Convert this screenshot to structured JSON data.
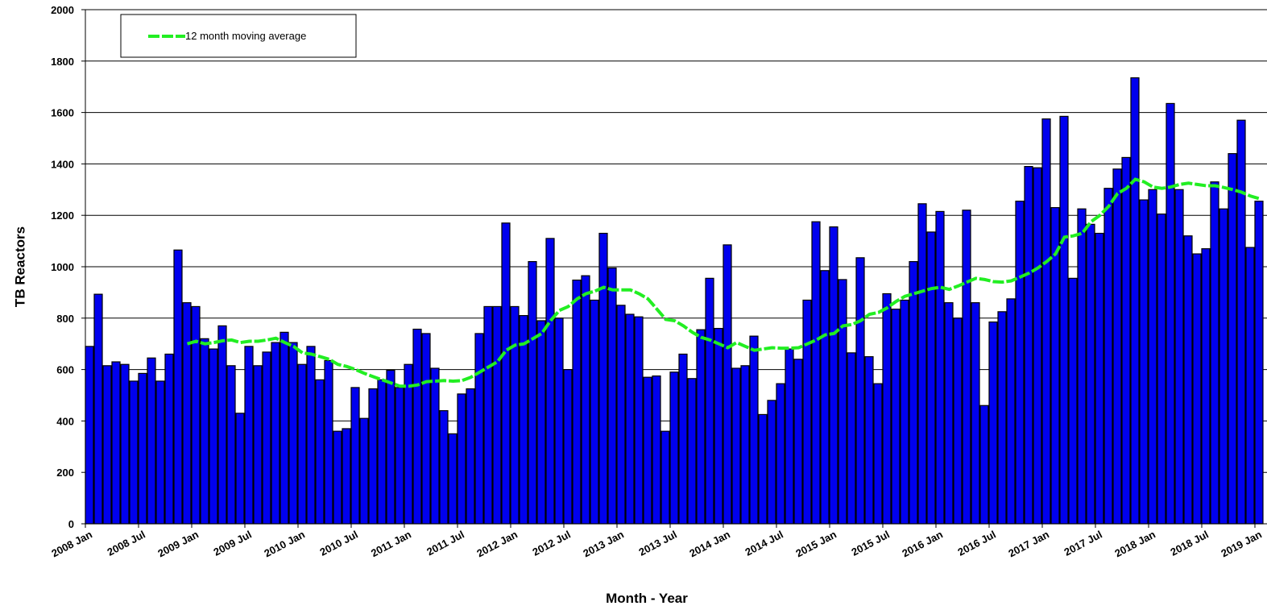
{
  "chart_data": {
    "type": "bar",
    "x_label": "Month - Year",
    "y_label": "TB Reactors",
    "categories": [
      "2008 Jan",
      null,
      null,
      null,
      null,
      null,
      "2008 Jul",
      null,
      null,
      null,
      null,
      null,
      "2009 Jan",
      null,
      null,
      null,
      null,
      null,
      "2009 Jul",
      null,
      null,
      null,
      null,
      null,
      "2010 Jan",
      null,
      null,
      null,
      null,
      null,
      "2010 Jul",
      null,
      null,
      null,
      null,
      null,
      "2011 Jan",
      null,
      null,
      null,
      null,
      null,
      "2011 Jul",
      null,
      null,
      null,
      null,
      null,
      "2012 Jan",
      null,
      null,
      null,
      null,
      null,
      "2012 Jul",
      null,
      null,
      null,
      null,
      null,
      "2013 Jan",
      null,
      null,
      null,
      null,
      null,
      "2013 Jul",
      null,
      null,
      null,
      null,
      null,
      "2014 Jan",
      null,
      null,
      null,
      null,
      null,
      "2014 Jul",
      null,
      null,
      null,
      null,
      null,
      "2015 Jan",
      null,
      null,
      null,
      null,
      null,
      "2015 Jul",
      null,
      null,
      null,
      null,
      null,
      "2016 Jan",
      null,
      null,
      null,
      null,
      null,
      "2016 Jul",
      null,
      null,
      null,
      null,
      null,
      "2017 Jan",
      null,
      null,
      null,
      null,
      null,
      "2017 Jul",
      null,
      null,
      null,
      null,
      null,
      "2018 Jan",
      null,
      null,
      null,
      null,
      null,
      "2018 Jul",
      null,
      null,
      null,
      null,
      null,
      "2019 Jan"
    ],
    "series": [
      {
        "type": "bar",
        "color": "#0000ee",
        "values": [
          690,
          893,
          615,
          630,
          620,
          555,
          585,
          645,
          555,
          660,
          1065,
          860,
          845,
          720,
          680,
          770,
          615,
          430,
          690,
          615,
          668,
          705,
          745,
          705,
          620,
          690,
          560,
          635,
          360,
          370,
          530,
          410,
          525,
          560,
          597,
          530,
          620,
          757,
          740,
          605,
          440,
          350,
          505,
          525,
          740,
          845,
          845,
          1170,
          845,
          810,
          1020,
          790,
          1110,
          800,
          600,
          948,
          965,
          870,
          1130,
          995,
          850,
          815,
          805,
          570,
          575,
          360,
          590,
          660,
          565,
          755,
          955,
          760,
          1085,
          605,
          615,
          730,
          425,
          480,
          545,
          680,
          640,
          870,
          1175,
          985,
          1155,
          950,
          665,
          1035,
          650,
          545,
          895,
          835,
          870,
          1020,
          1245,
          1135,
          1215,
          860,
          800,
          1220,
          860,
          460,
          785,
          825,
          875,
          1255,
          1390,
          1385,
          1575,
          1230,
          1585,
          955,
          1225,
          1165,
          1130,
          1305,
          1380,
          1425,
          1735,
          1260,
          1300,
          1205,
          1635,
          1300,
          1120,
          1050,
          1070,
          1330,
          1225,
          1440,
          1570,
          1075,
          1255
        ]
      },
      {
        "type": "line",
        "name": "12 month moving average",
        "color": "#22ee22",
        "values": [
          null,
          null,
          null,
          null,
          null,
          null,
          null,
          null,
          null,
          null,
          null,
          700,
          710,
          700,
          705,
          712,
          715,
          705,
          710,
          710,
          715,
          722,
          705,
          690,
          665,
          660,
          650,
          640,
          620,
          612,
          600,
          585,
          572,
          560,
          548,
          535,
          535,
          540,
          553,
          555,
          557,
          555,
          557,
          570,
          590,
          610,
          630,
          675,
          695,
          700,
          720,
          740,
          790,
          830,
          845,
          875,
          895,
          905,
          920,
          910,
          910,
          910,
          895,
          875,
          835,
          795,
          790,
          770,
          745,
          725,
          715,
          700,
          685,
          705,
          690,
          675,
          680,
          685,
          683,
          683,
          685,
          700,
          715,
          735,
          740,
          770,
          775,
          790,
          815,
          822,
          840,
          865,
          885,
          895,
          905,
          915,
          920,
          912,
          925,
          940,
          955,
          950,
          942,
          940,
          945,
          960,
          975,
          995,
          1020,
          1050,
          1115,
          1120,
          1130,
          1175,
          1200,
          1235,
          1285,
          1305,
          1340,
          1330,
          1310,
          1305,
          1310,
          1320,
          1325,
          1320,
          1315,
          1315,
          1308,
          1300,
          1290,
          1275,
          1265
        ]
      }
    ],
    "ylim": [
      0,
      2000
    ],
    "yticks": [
      0,
      200,
      400,
      600,
      800,
      1000,
      1200,
      1400,
      1600,
      1800,
      2000
    ],
    "grid": true,
    "legend": "top-left"
  }
}
